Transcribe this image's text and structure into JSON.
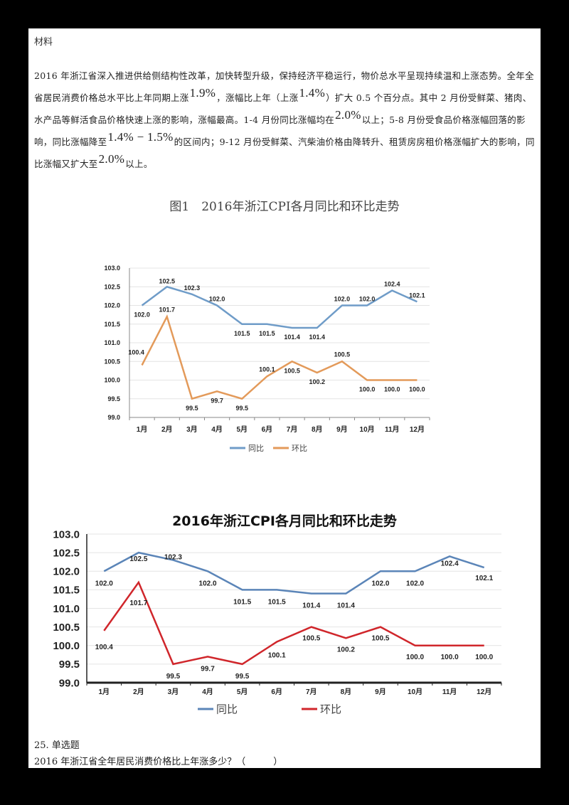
{
  "page": {
    "heading": "材料",
    "paragraph": {
      "p1": "2016 年浙江省深入推进供给侧结构性改革，加快转型升级，保持经济平稳运行，物价总水平呈现持续温和上涨态势。全年全省居民消费价格总水平比上年同期上涨",
      "m1": "1.9%",
      "p2": "，涨幅比上年（上涨",
      "m2": "1.4%",
      "p3": "）扩大 0.5 个百分点。其中 2 月份受鲜菜、猪肉、水产品等鲜活食品价格快速上涨的影响，涨幅最高。1-4 月份同比涨幅均在",
      "m3": "2.0%",
      "p4": "以上；5-8 月份受食品价格涨幅回落的影响，同比涨幅降至",
      "m4": "1.4% − 1.5%",
      "p5": "的区间内；9-12 月份受鲜菜、汽柴油价格由降转升、租赁房房租价格涨幅扩大的影响，同比涨幅又扩大至",
      "m5": "2.0%",
      "p6": "以上。"
    },
    "question": {
      "number": "25. 单选题",
      "text": "2016 年浙江省全年居民消费价格比上年涨多少？（　　　）"
    }
  },
  "chart_data": [
    {
      "type": "line",
      "title": "图1　2016年浙江CPI各月同比和环比走势",
      "categories": [
        "1月",
        "2月",
        "3月",
        "4月",
        "5月",
        "6月",
        "7月",
        "8月",
        "9月",
        "10月",
        "11月",
        "12月"
      ],
      "series": [
        {
          "name": "同比",
          "color": "#6f9cc8",
          "values": [
            102.0,
            102.5,
            102.3,
            102.0,
            101.5,
            101.5,
            101.4,
            101.4,
            102.0,
            102.0,
            102.4,
            102.1
          ]
        },
        {
          "name": "环比",
          "color": "#e39a5a",
          "values": [
            100.4,
            101.7,
            99.5,
            99.7,
            99.5,
            100.1,
            100.5,
            100.2,
            100.5,
            100.0,
            100.0,
            100.0
          ]
        }
      ],
      "yticks": [
        "99.0",
        "99.5",
        "100.0",
        "100.5",
        "101.0",
        "101.5",
        "102.0",
        "102.5",
        "103.0"
      ],
      "ylim": [
        99.0,
        103.0
      ],
      "xlabel": "",
      "ylabel": "",
      "grid": true,
      "legend_position": "bottom"
    },
    {
      "type": "line",
      "title": "2016年浙江CPI各月同比和环比走势",
      "categories": [
        "1月",
        "2月",
        "3月",
        "4月",
        "5月",
        "6月",
        "7月",
        "8月",
        "9月",
        "10月",
        "11月",
        "12月"
      ],
      "series": [
        {
          "name": "同比",
          "color": "#5b85b8",
          "values": [
            102.0,
            102.5,
            102.3,
            102.0,
            101.5,
            101.5,
            101.4,
            101.4,
            102.0,
            102.0,
            102.4,
            102.1
          ]
        },
        {
          "name": "环比",
          "color": "#d0262b",
          "values": [
            100.4,
            101.7,
            99.5,
            99.7,
            99.5,
            100.1,
            100.5,
            100.2,
            100.5,
            100.0,
            100.0,
            100.0
          ]
        }
      ],
      "yticks": [
        "99.0",
        "99.5",
        "100.0",
        "100.5",
        "101.0",
        "101.5",
        "102.0",
        "102.5",
        "103.0"
      ],
      "ylim": [
        99.0,
        103.0
      ],
      "xlabel": "",
      "ylabel": "",
      "grid": true,
      "legend_position": "bottom"
    }
  ]
}
